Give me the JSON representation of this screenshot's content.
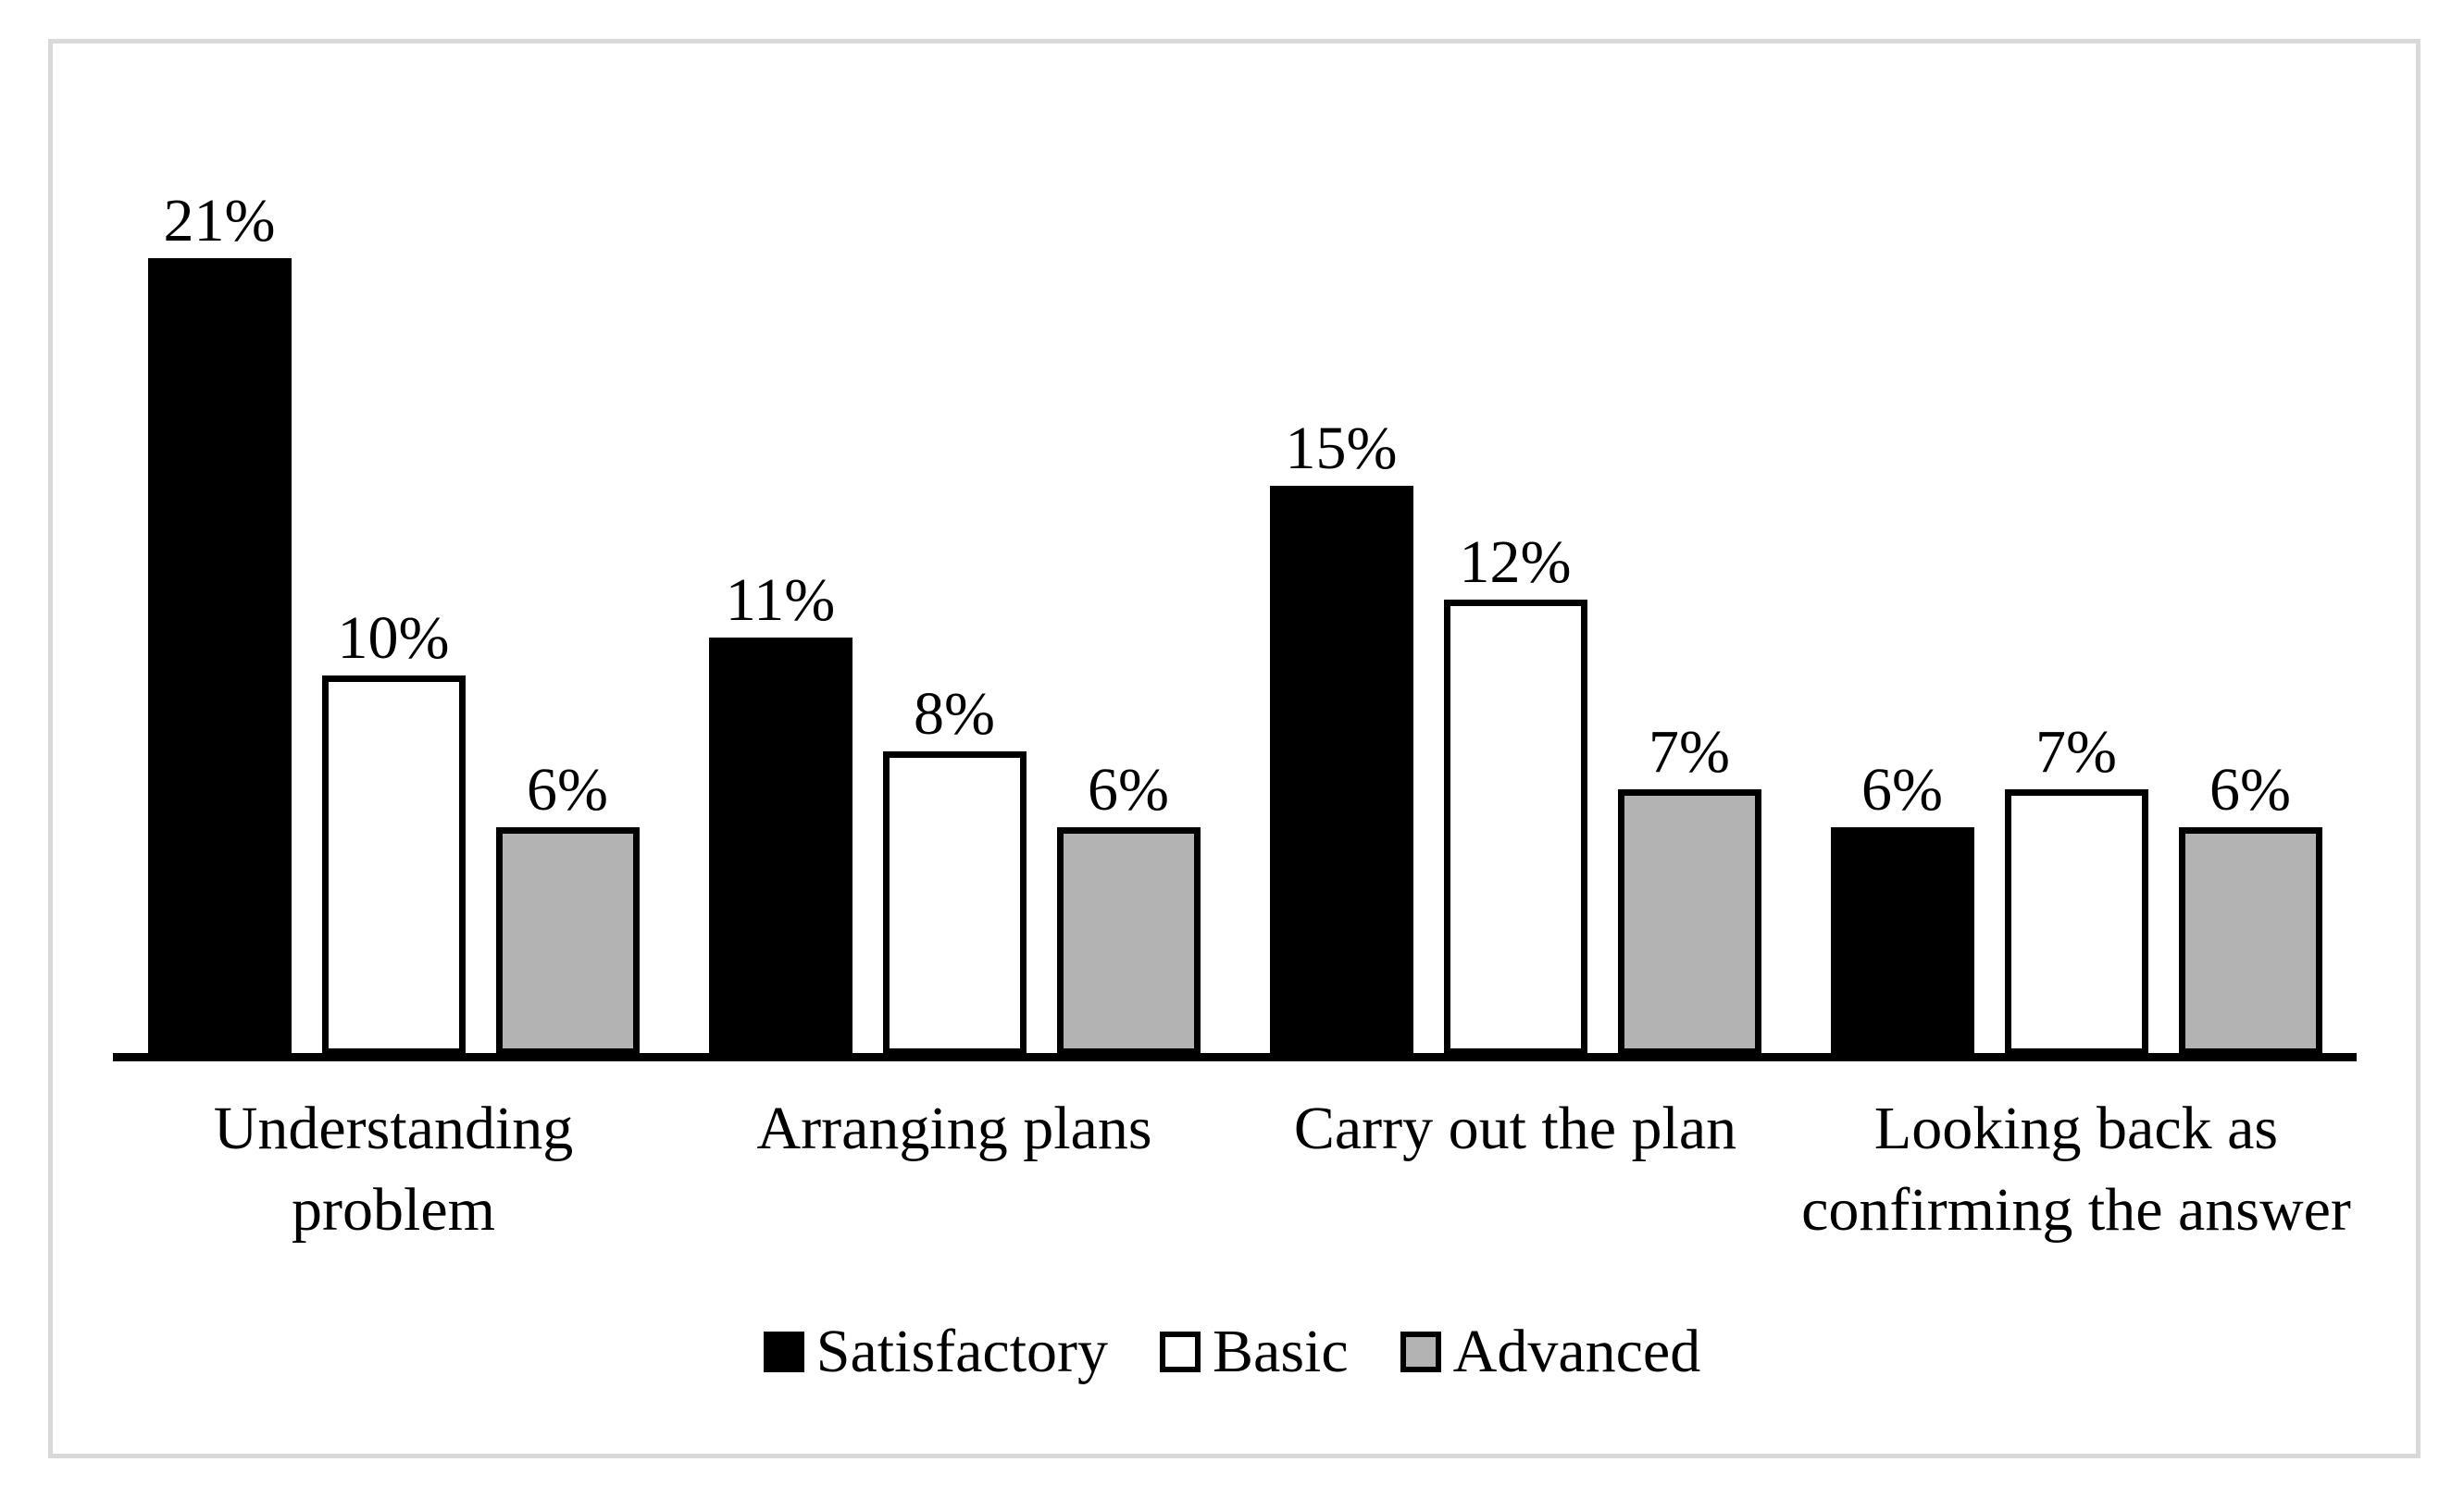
{
  "figure": {
    "background": "#ffffff",
    "frame_border_color": "#d9d9d9"
  },
  "chart_data": {
    "type": "bar",
    "title": "",
    "xlabel": "",
    "ylabel": "",
    "categories": [
      "Understanding problem",
      "Arranging plans",
      "Carry out the plan",
      "Looking back as confirming the answer"
    ],
    "category_lines": [
      [
        "Understanding",
        "problem"
      ],
      [
        "Arranging plans"
      ],
      [
        "Carry out the plan"
      ],
      [
        "Looking back as",
        "confirming the answer"
      ]
    ],
    "series": [
      {
        "name": "Satisfactory",
        "fill": "#000000",
        "border": "#000000",
        "values": [
          21,
          11,
          15,
          6
        ]
      },
      {
        "name": "Basic",
        "fill": "#ffffff",
        "border": "#000000",
        "values": [
          10,
          8,
          12,
          7
        ]
      },
      {
        "name": "Advanced",
        "fill": "#b3b3b3",
        "border": "#000000",
        "values": [
          6,
          6,
          7,
          6
        ]
      }
    ],
    "value_label_format": "{v}%",
    "value_labels_by_series": [
      [
        "21%",
        "11%",
        "15%",
        "6%"
      ],
      [
        "10%",
        "8%",
        "12%",
        "7%"
      ],
      [
        "6%",
        "6%",
        "7%",
        "6%"
      ]
    ],
    "legend": [
      "Satisfactory",
      "Basic",
      "Advanced"
    ],
    "legend_position": "bottom",
    "ylim": [
      0,
      23
    ],
    "grid": false,
    "y_axis_visible": false,
    "x_axis_line_visible": true,
    "axis_color": "#000000"
  }
}
